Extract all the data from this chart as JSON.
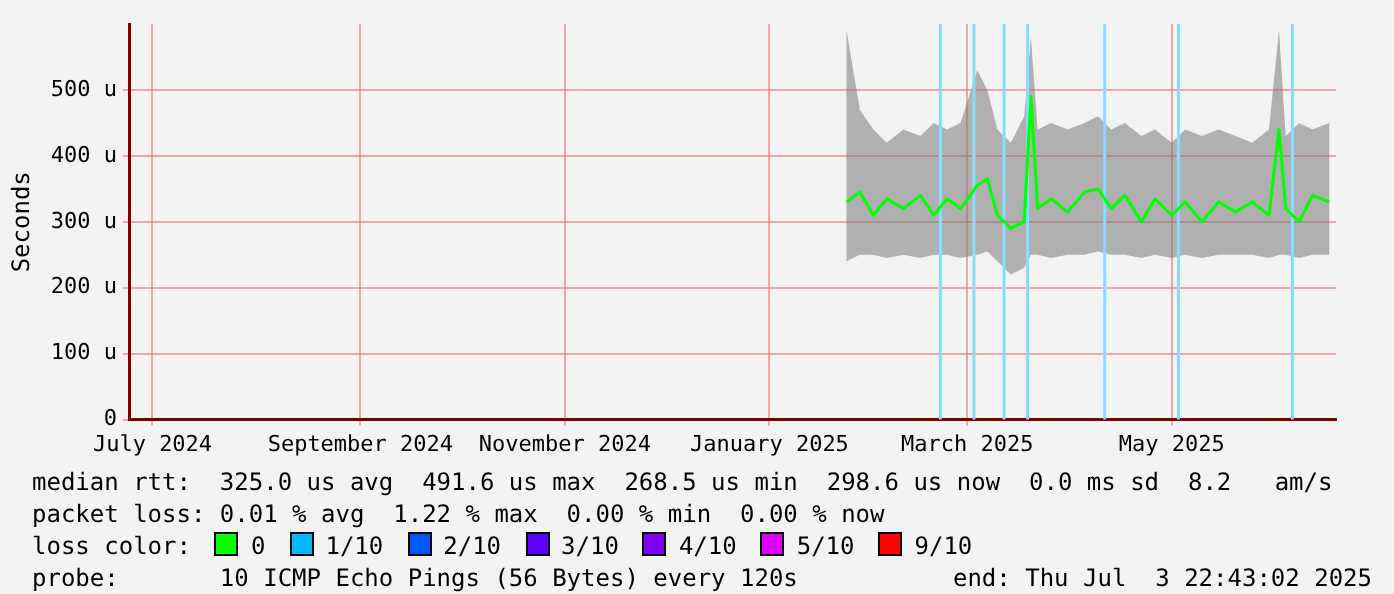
{
  "chart_data": {
    "type": "line",
    "ylabel": "Seconds",
    "legend_title": "loss color:",
    "legend": "bottom",
    "grid": true,
    "marker": "none",
    "xlim": [
      "2024-07-09",
      "2025-07-04"
    ],
    "xticks": [
      {
        "value": "2024-07-16",
        "label": "July 2024"
      },
      {
        "value": "2024-09-16",
        "label": "September 2024"
      },
      {
        "value": "2024-11-16",
        "label": "November 2024"
      },
      {
        "value": "2025-01-16",
        "label": "January 2025"
      },
      {
        "value": "2025-03-16",
        "label": "March 2025"
      },
      {
        "value": "2025-05-16",
        "label": "May 2025"
      }
    ],
    "ylim": [
      0,
      600
    ],
    "yticks": [
      0,
      {
        "value": 100,
        "label": "100 u"
      },
      {
        "value": 200,
        "label": "200 u"
      },
      {
        "value": 300,
        "label": "300 u"
      },
      {
        "value": 400,
        "label": "400 u"
      },
      {
        "value": 500,
        "label": "500 u"
      }
    ],
    "x": [
      "2025-02-08",
      "2025-02-12",
      "2025-02-16",
      "2025-02-20",
      "2025-02-25",
      "2025-03-02",
      "2025-03-06",
      "2025-03-10",
      "2025-03-14",
      "2025-03-19",
      "2025-03-22",
      "2025-03-25",
      "2025-03-29",
      "2025-04-02",
      "2025-04-04",
      "2025-04-06",
      "2025-04-10",
      "2025-04-15",
      "2025-04-20",
      "2025-04-24",
      "2025-04-28",
      "2025-05-02",
      "2025-05-07",
      "2025-05-11",
      "2025-05-16",
      "2025-05-20",
      "2025-05-25",
      "2025-05-30",
      "2025-06-04",
      "2025-06-09",
      "2025-06-14",
      "2025-06-17",
      "2025-06-19",
      "2025-06-23",
      "2025-06-27",
      "2025-07-02"
    ],
    "series": [
      {
        "name": "0",
        "color": "#00ff00",
        "values": [
          330,
          345,
          310,
          335,
          320,
          340,
          310,
          335,
          320,
          355,
          365,
          310,
          290,
          300,
          490,
          320,
          335,
          315,
          345,
          350,
          320,
          340,
          300,
          335,
          310,
          330,
          300,
          330,
          315,
          330,
          310,
          440,
          320,
          300,
          340,
          330
        ],
        "lower": [
          240,
          250,
          250,
          245,
          250,
          245,
          250,
          250,
          245,
          250,
          255,
          240,
          220,
          230,
          250,
          250,
          245,
          250,
          250,
          255,
          250,
          250,
          245,
          250,
          245,
          250,
          245,
          250,
          250,
          250,
          245,
          250,
          250,
          245,
          250,
          250
        ],
        "upper": [
          590,
          470,
          440,
          420,
          440,
          430,
          450,
          440,
          450,
          530,
          500,
          440,
          420,
          460,
          580,
          440,
          450,
          440,
          450,
          460,
          440,
          450,
          430,
          440,
          420,
          440,
          430,
          440,
          430,
          420,
          440,
          590,
          430,
          450,
          440,
          450
        ]
      },
      {
        "name": "1/10",
        "color": "#00b8ff",
        "values": [
          null,
          null,
          null,
          null,
          null,
          null,
          null,
          null,
          null,
          null,
          null,
          null,
          null,
          null,
          null,
          null,
          null,
          null,
          null,
          null,
          null,
          null,
          null,
          null,
          null,
          null,
          null,
          null,
          null,
          null,
          null,
          null,
          null,
          null,
          null,
          null
        ]
      },
      {
        "name": "2/10",
        "color": "#0059ff",
        "values": [
          null,
          null,
          null,
          null,
          null,
          null,
          null,
          null,
          null,
          null,
          null,
          null,
          null,
          null,
          null,
          null,
          null,
          null,
          null,
          null,
          null,
          null,
          null,
          null,
          null,
          null,
          null,
          null,
          null,
          null,
          null,
          null,
          null,
          null,
          null,
          null
        ]
      },
      {
        "name": "3/10",
        "color": "#5e00ff",
        "values": [
          null,
          null,
          null,
          null,
          null,
          null,
          null,
          null,
          null,
          null,
          null,
          null,
          null,
          null,
          null,
          null,
          null,
          null,
          null,
          null,
          null,
          null,
          null,
          null,
          null,
          null,
          null,
          null,
          null,
          null,
          null,
          null,
          null,
          null,
          null,
          null
        ]
      },
      {
        "name": "4/10",
        "color": "#7e00ff",
        "values": [
          null,
          null,
          null,
          null,
          null,
          null,
          null,
          null,
          null,
          null,
          null,
          null,
          null,
          null,
          null,
          null,
          null,
          null,
          null,
          null,
          null,
          null,
          null,
          null,
          null,
          null,
          null,
          null,
          null,
          null,
          null,
          null,
          null,
          null,
          null,
          null
        ]
      },
      {
        "name": "5/10",
        "color": "#dd00ff",
        "values": [
          null,
          null,
          null,
          null,
          null,
          null,
          null,
          null,
          null,
          null,
          null,
          null,
          null,
          null,
          null,
          null,
          null,
          null,
          null,
          null,
          null,
          null,
          null,
          null,
          null,
          null,
          null,
          null,
          null,
          null,
          null,
          null,
          null,
          null,
          null,
          null
        ]
      },
      {
        "name": "9/10",
        "color": "#ff0000",
        "values": [
          null,
          null,
          null,
          null,
          null,
          null,
          null,
          null,
          null,
          null,
          null,
          null,
          null,
          null,
          null,
          null,
          null,
          null,
          null,
          null,
          null,
          null,
          null,
          null,
          null,
          null,
          null,
          null,
          null,
          null,
          null,
          null,
          null,
          null,
          null,
          null
        ]
      }
    ],
    "ref_lines": [
      {
        "axis": "x",
        "value": "2025-03-08",
        "color": "#88ddff"
      },
      {
        "axis": "x",
        "value": "2025-03-18",
        "color": "#88ddff"
      },
      {
        "axis": "x",
        "value": "2025-03-27",
        "color": "#88ddff"
      },
      {
        "axis": "x",
        "value": "2025-04-03",
        "color": "#88ddff"
      },
      {
        "axis": "x",
        "value": "2025-04-26",
        "color": "#88ddff"
      },
      {
        "axis": "x",
        "value": "2025-05-18",
        "color": "#88ddff"
      },
      {
        "axis": "x",
        "value": "2025-06-21",
        "color": "#88ddff"
      }
    ],
    "annotations": [
      "median rtt:  325.0 us avg  491.6 us max  268.5 us min  298.6 us now  0.0 ms sd  8.2   am/s",
      "packet loss: 0.01 % avg  1.22 % max  0.00 % min  0.00 % now",
      "probe:       10 ICMP Echo Pings (56 Bytes) every 120s",
      "end: Thu Jul  3 22:43:02 2025"
    ]
  }
}
